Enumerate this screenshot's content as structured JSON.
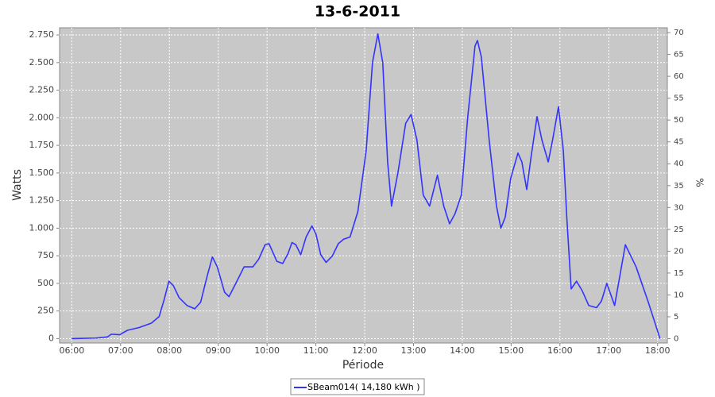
{
  "chart_data": {
    "type": "line",
    "title": "13-6-2011",
    "x_label": "Période",
    "y_label": "Watts",
    "y2_label": "%",
    "x": [
      6.0,
      6.49,
      6.73,
      6.81,
      6.98,
      7.14,
      7.38,
      7.63,
      7.79,
      7.89,
      7.99,
      8.08,
      8.2,
      8.36,
      8.52,
      8.64,
      8.77,
      8.88,
      8.98,
      9.13,
      9.22,
      9.36,
      9.53,
      9.71,
      9.83,
      9.96,
      10.04,
      10.2,
      10.32,
      10.43,
      10.51,
      10.59,
      10.69,
      10.8,
      10.92,
      11.0,
      11.1,
      11.21,
      11.34,
      11.46,
      11.57,
      11.7,
      11.86,
      12.03,
      12.16,
      12.27,
      12.37,
      12.47,
      12.55,
      12.68,
      12.84,
      12.95,
      13.07,
      13.2,
      13.33,
      13.49,
      13.62,
      13.74,
      13.85,
      13.98,
      14.11,
      14.26,
      14.31,
      14.39,
      14.55,
      14.7,
      14.79,
      14.88,
      14.99,
      15.14,
      15.22,
      15.32,
      15.41,
      15.53,
      15.63,
      15.76,
      15.85,
      15.97,
      16.07,
      16.14,
      16.23,
      16.34,
      16.46,
      16.59,
      16.75,
      16.85,
      16.96,
      17.04,
      17.12,
      17.22,
      17.34,
      17.56,
      17.81,
      18.05
    ],
    "series": [
      {
        "name": "SBeam014( 14,180 kWh )",
        "color": "#3333ff",
        "values": [
          0,
          5,
          15,
          40,
          35,
          75,
          100,
          140,
          200,
          350,
          520,
          480,
          370,
          300,
          270,
          330,
          560,
          740,
          650,
          420,
          380,
          500,
          650,
          650,
          720,
          850,
          860,
          700,
          680,
          770,
          870,
          850,
          760,
          920,
          1020,
          950,
          760,
          690,
          750,
          860,
          900,
          920,
          1150,
          1700,
          2500,
          2760,
          2500,
          1600,
          1200,
          1500,
          1950,
          2030,
          1800,
          1300,
          1200,
          1480,
          1200,
          1040,
          1130,
          1300,
          2000,
          2650,
          2700,
          2550,
          1800,
          1200,
          1000,
          1100,
          1450,
          1680,
          1600,
          1350,
          1650,
          2010,
          1800,
          1600,
          1800,
          2100,
          1700,
          1100,
          450,
          520,
          430,
          300,
          280,
          340,
          500,
          400,
          300,
          550,
          850,
          650,
          330,
          0
        ]
      }
    ],
    "xlim": [
      5.75,
      18.2
    ],
    "xticks": [
      {
        "value": 6,
        "label": "06:00"
      },
      {
        "value": 7,
        "label": "07:00"
      },
      {
        "value": 8,
        "label": "08:00"
      },
      {
        "value": 9,
        "label": "09:00"
      },
      {
        "value": 10,
        "label": "10:00"
      },
      {
        "value": 11,
        "label": "11:00"
      },
      {
        "value": 12,
        "label": "12:00"
      },
      {
        "value": 13,
        "label": "13:00"
      },
      {
        "value": 14,
        "label": "14:00"
      },
      {
        "value": 15,
        "label": "15:00"
      },
      {
        "value": 16,
        "label": "16:00"
      },
      {
        "value": 17,
        "label": "17:00"
      },
      {
        "value": 18,
        "label": "18:00"
      }
    ],
    "ylim": [
      -40,
      2815
    ],
    "yticks": [
      0,
      250,
      500,
      750,
      {
        "value": 1000,
        "label": "1.000"
      },
      {
        "value": 1250,
        "label": "1.250"
      },
      {
        "value": 1500,
        "label": "1.500"
      },
      {
        "value": 1750,
        "label": "1.750"
      },
      {
        "value": 2000,
        "label": "2.000"
      },
      {
        "value": 2250,
        "label": "2.250"
      },
      {
        "value": 2500,
        "label": "2.500"
      },
      {
        "value": 2750,
        "label": "2.750"
      }
    ],
    "y2lim": [
      -1,
      71.1
    ],
    "y2ticks": [
      0,
      5,
      10,
      15,
      20,
      25,
      30,
      35,
      40,
      45,
      50,
      55,
      60,
      65,
      70
    ],
    "grid": true,
    "legend": "bottom"
  }
}
